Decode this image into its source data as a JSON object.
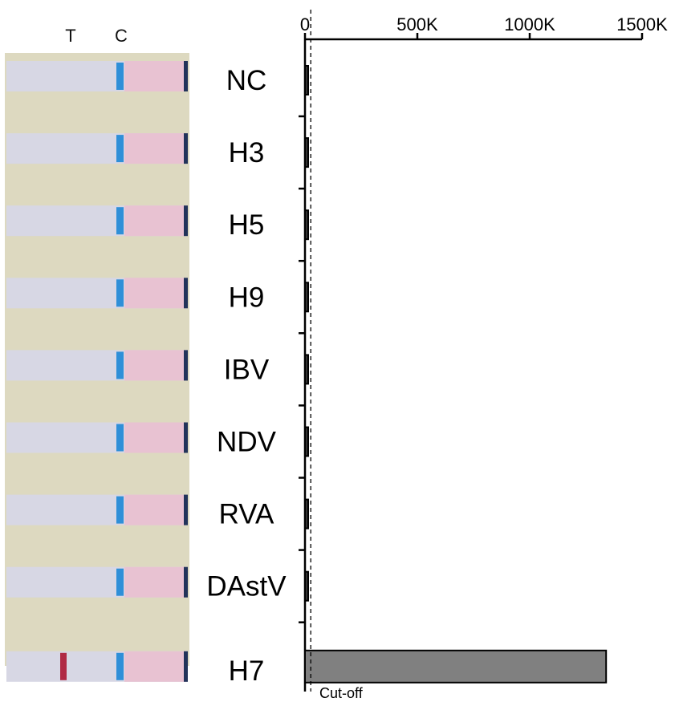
{
  "strip_panel": {
    "line_labels": {
      "test": "T",
      "control": "C"
    },
    "samples": [
      {
        "name": "NC",
        "test_band": false
      },
      {
        "name": "H3",
        "test_band": false
      },
      {
        "name": "H5",
        "test_band": false
      },
      {
        "name": "H9",
        "test_band": false
      },
      {
        "name": "IBV",
        "test_band": false
      },
      {
        "name": "NDV",
        "test_band": false
      },
      {
        "name": "RVA",
        "test_band": false
      },
      {
        "name": "DAstV",
        "test_band": false
      },
      {
        "name": "H7",
        "test_band": true
      }
    ],
    "colors": {
      "background": "#ddd9c0",
      "membrane": "#d7d7e4",
      "control_line": "#2f8fd8",
      "test_line": "#b02a45",
      "pad": "#e8c2d2"
    }
  },
  "chart_data": {
    "type": "bar",
    "orientation": "horizontal",
    "categories": [
      "NC",
      "H3",
      "H5",
      "H9",
      "IBV",
      "NDV",
      "RVA",
      "DAstV",
      "H7"
    ],
    "values": [
      8000,
      9000,
      9000,
      12000,
      11000,
      11000,
      9000,
      9000,
      1340000
    ],
    "xlim": [
      0,
      1500000
    ],
    "xticks": [
      {
        "value": 0,
        "label": "0"
      },
      {
        "value": 500000,
        "label": "500K"
      },
      {
        "value": 1000000,
        "label": "1000K"
      },
      {
        "value": 1500000,
        "label": "1500K"
      }
    ],
    "axis_position": "top",
    "cutoff": {
      "value": 40000,
      "label": "Cut-off"
    },
    "bar_color": "#808080",
    "bar_edge": "#000000",
    "grid": false,
    "legend": false
  }
}
